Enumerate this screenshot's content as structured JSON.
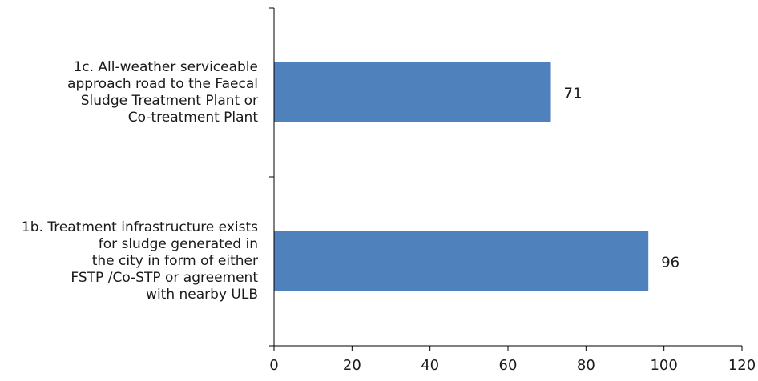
{
  "chart_data": {
    "type": "bar",
    "orientation": "horizontal",
    "categories": [
      "1c. All-weather serviceable approach road to the Faecal Sludge Treatment Plant or Co-treatment Plant",
      "1b. Treatment infrastructure exists for sludge generated in the city in form of either FSTP /Co-STP or agreement with nearby ULB"
    ],
    "category_lines": [
      [
        "1c. All-weather serviceable",
        "approach road to the Faecal",
        "Sludge Treatment Plant or",
        "Co-treatment Plant"
      ],
      [
        "1b. Treatment infrastructure exists",
        "for sludge generated in",
        "the city in form of either",
        "FSTP /Co-STP or agreement",
        "with nearby ULB"
      ]
    ],
    "values": [
      71,
      96
    ],
    "data_labels": [
      "71",
      "96"
    ],
    "xlim": [
      0,
      120
    ],
    "xticks": [
      0,
      20,
      40,
      60,
      80,
      100,
      120
    ],
    "xtick_labels": [
      "0",
      "20",
      "40",
      "60",
      "80",
      "100",
      "120"
    ],
    "title": "",
    "xlabel": "",
    "ylabel": "",
    "grid": false,
    "legend": "none",
    "bar_color": "#4f81bd",
    "axis_color": "#000000"
  }
}
